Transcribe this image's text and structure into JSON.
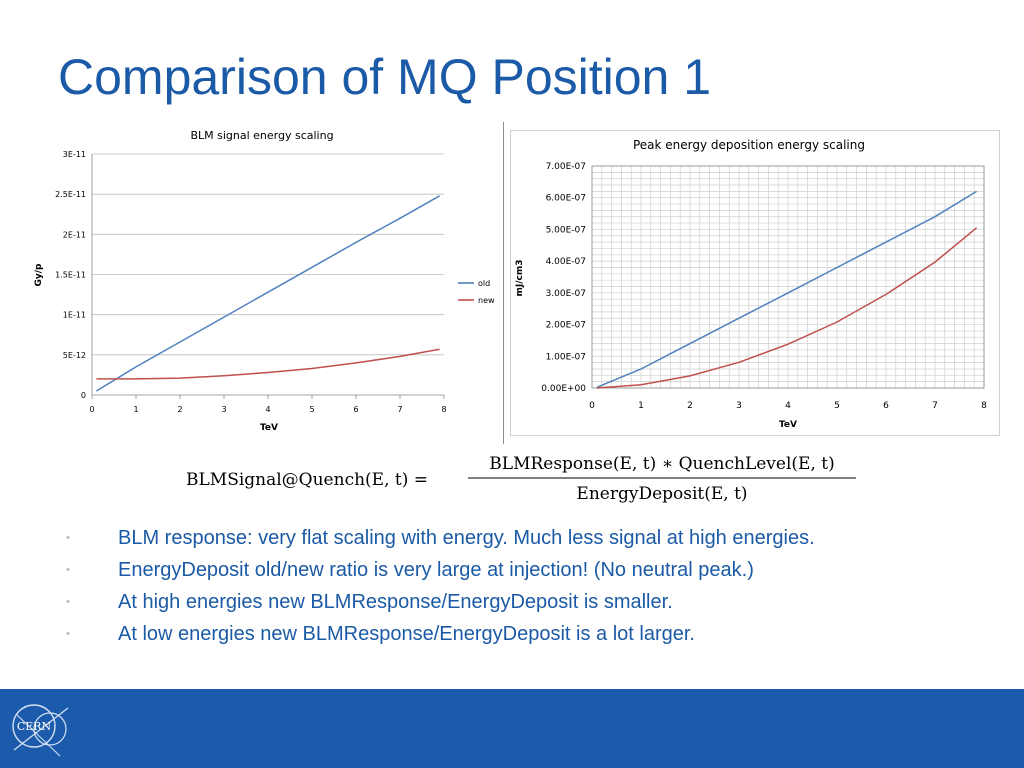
{
  "slide": {
    "title": "Comparison of MQ Position 1"
  },
  "chart_data": [
    {
      "type": "line",
      "title": "BLM signal energy scaling",
      "xlabel": "TeV",
      "ylabel": "Gy/p",
      "xlim": [
        0,
        8
      ],
      "ylim": [
        0,
        3e-11
      ],
      "x_ticks": [
        "0",
        "1",
        "2",
        "3",
        "4",
        "5",
        "6",
        "7",
        "8"
      ],
      "y_ticks": [
        "0",
        "5E-12",
        "1E-11",
        "1.5E-11",
        "2E-11",
        "2.5E-11",
        "3E-11"
      ],
      "grid": "horizontal",
      "legend": "right",
      "series": [
        {
          "name": "old",
          "color": "#4f81bd",
          "x": [
            0.1,
            1,
            2,
            3,
            4,
            5,
            6,
            7,
            7.9
          ],
          "y": [
            5e-13,
            3.5e-12,
            6.6e-12,
            9.7e-12,
            1.28e-11,
            1.59e-11,
            1.9e-11,
            2.2e-11,
            2.48e-11
          ]
        },
        {
          "name": "new",
          "color": "#c0504d",
          "x": [
            0.1,
            1,
            2,
            3,
            4,
            5,
            6,
            7,
            7.9
          ],
          "y": [
            2e-12,
            2e-12,
            2.1e-12,
            2.4e-12,
            2.8e-12,
            3.3e-12,
            4e-12,
            4.8e-12,
            5.7e-12
          ]
        }
      ]
    },
    {
      "type": "line",
      "title": "Peak energy deposition energy scaling",
      "xlabel": "TeV",
      "ylabel": "mJ/cm3",
      "xlim": [
        0,
        8
      ],
      "ylim": [
        0,
        7e-07
      ],
      "x_ticks": [
        "0",
        "1",
        "2",
        "3",
        "4",
        "5",
        "6",
        "7",
        "8"
      ],
      "y_ticks": [
        "0.00E+00",
        "1.00E-07",
        "2.00E-07",
        "3.00E-07",
        "4.00E-07",
        "5.00E-07",
        "6.00E-07",
        "7.00E-07"
      ],
      "grid": "both",
      "series": [
        {
          "color": "#4f81bd",
          "x": [
            0.1,
            0.3,
            1,
            2,
            3,
            4,
            5,
            6,
            7,
            7.85
          ],
          "y": [
            2e-09,
            1.5e-08,
            6e-08,
            1.4e-07,
            2.2e-07,
            3e-07,
            3.8e-07,
            4.6e-07,
            5.4e-07,
            6.2e-07
          ]
        },
        {
          "color": "#c0504d",
          "x": [
            0.1,
            1,
            2,
            3,
            4,
            5,
            6,
            7,
            7.85
          ],
          "y": [
            0,
            1e-08,
            3.8e-08,
            8.1e-08,
            1.38e-07,
            2.08e-07,
            2.95e-07,
            3.97e-07,
            5.05e-07
          ]
        }
      ]
    }
  ],
  "formula": {
    "lhs": "BLMSignal@Quench(E, t) =",
    "numerator": "BLMResponse(E, t) ∗ QuenchLevel(E, t)",
    "denominator": "EnergyDeposit(E, t)"
  },
  "bullets": {
    "marker": "•",
    "items": [
      "BLM response: very flat scaling with energy. Much less signal at high energies.",
      "EnergyDeposit old/new ratio is very large at injection! (No neutral peak.)",
      "At high energies new BLMResponse/EnergyDeposit is smaller.",
      "At low energies new BLMResponse/EnergyDeposit is a lot larger."
    ]
  },
  "footer": {
    "logo_text": "CERN",
    "bar_color": "#1c5aac"
  }
}
